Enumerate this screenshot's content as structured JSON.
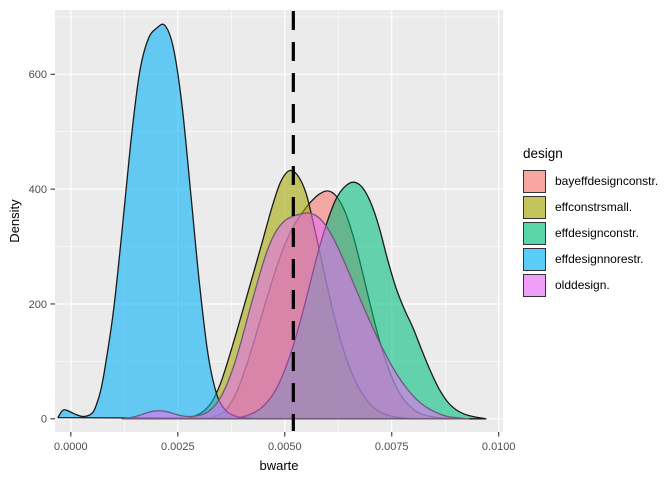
{
  "chart_data": {
    "type": "area",
    "variant": "density",
    "title": "",
    "xlabel": "bwarte",
    "ylabel": "Density",
    "xlim": [
      -0.00037,
      0.0101
    ],
    "ylim": [
      -23,
      712
    ],
    "x_ticks": {
      "values": [
        0.0,
        0.0025,
        0.005,
        0.0075,
        0.01
      ],
      "labels": [
        "0.0000",
        "0.0025",
        "0.0050",
        "0.0075",
        "0.0100"
      ]
    },
    "x_minor": [
      0.00125,
      0.00375,
      0.00625,
      0.00875
    ],
    "y_ticks": {
      "values": [
        0,
        200,
        400,
        600
      ],
      "labels": [
        "0",
        "200",
        "400",
        "600"
      ]
    },
    "y_minor": [
      100,
      300,
      500,
      700
    ],
    "grid": "on",
    "panel_bg": "#EBEBEB",
    "grid_color": "#FFFFFF",
    "tick_color": "#333333",
    "tick_label_color": "#4D4D4D",
    "fill_alpha": 0.58,
    "vline": {
      "x": 0.0052,
      "style": "dashed",
      "color": "#000000"
    },
    "legend": {
      "title": "design",
      "position": "right"
    },
    "series": [
      {
        "name": "bayeffdesignconstr.",
        "color": "#F8766D",
        "outline": "#1A1A1A",
        "points": [
          [
            0.0032,
            0
          ],
          [
            0.0034,
            5
          ],
          [
            0.0036,
            14
          ],
          [
            0.0038,
            35
          ],
          [
            0.004,
            70
          ],
          [
            0.0042,
            115
          ],
          [
            0.0044,
            165
          ],
          [
            0.0046,
            215
          ],
          [
            0.0048,
            262
          ],
          [
            0.005,
            303
          ],
          [
            0.0052,
            335
          ],
          [
            0.0054,
            358
          ],
          [
            0.0056,
            377
          ],
          [
            0.0058,
            391
          ],
          [
            0.006,
            397
          ],
          [
            0.0062,
            388
          ],
          [
            0.0064,
            362
          ],
          [
            0.0066,
            318
          ],
          [
            0.0068,
            260
          ],
          [
            0.007,
            198
          ],
          [
            0.0072,
            140
          ],
          [
            0.0074,
            92
          ],
          [
            0.0076,
            56
          ],
          [
            0.0078,
            32
          ],
          [
            0.008,
            17
          ],
          [
            0.0082,
            8
          ],
          [
            0.0085,
            3
          ],
          [
            0.0089,
            0
          ]
        ]
      },
      {
        "name": "effconstrsmall.",
        "color": "#A3A500",
        "outline": "#1A1A1A",
        "points": [
          [
            0.0027,
            0
          ],
          [
            0.0029,
            5
          ],
          [
            0.0031,
            13
          ],
          [
            0.0033,
            30
          ],
          [
            0.0035,
            62
          ],
          [
            0.0037,
            108
          ],
          [
            0.0039,
            158
          ],
          [
            0.0041,
            210
          ],
          [
            0.0043,
            262
          ],
          [
            0.0045,
            315
          ],
          [
            0.0047,
            368
          ],
          [
            0.0049,
            412
          ],
          [
            0.0051,
            432
          ],
          [
            0.0053,
            424
          ],
          [
            0.0055,
            392
          ],
          [
            0.0057,
            330
          ],
          [
            0.0059,
            262
          ],
          [
            0.0061,
            196
          ],
          [
            0.0063,
            138
          ],
          [
            0.0065,
            92
          ],
          [
            0.0067,
            58
          ],
          [
            0.0069,
            34
          ],
          [
            0.0071,
            18
          ],
          [
            0.0073,
            9
          ],
          [
            0.0076,
            3
          ],
          [
            0.008,
            0
          ]
        ]
      },
      {
        "name": "effdesignconstr.",
        "color": "#00BF7D",
        "outline": "#1A1A1A",
        "points": [
          [
            0.0038,
            0
          ],
          [
            0.004,
            3
          ],
          [
            0.0042,
            8
          ],
          [
            0.0044,
            16
          ],
          [
            0.0046,
            30
          ],
          [
            0.0048,
            52
          ],
          [
            0.005,
            85
          ],
          [
            0.0052,
            128
          ],
          [
            0.0054,
            180
          ],
          [
            0.0056,
            238
          ],
          [
            0.0058,
            296
          ],
          [
            0.006,
            345
          ],
          [
            0.0062,
            383
          ],
          [
            0.0064,
            404
          ],
          [
            0.0066,
            412
          ],
          [
            0.0068,
            404
          ],
          [
            0.007,
            378
          ],
          [
            0.0072,
            335
          ],
          [
            0.0074,
            278
          ],
          [
            0.0076,
            228
          ],
          [
            0.0078,
            190
          ],
          [
            0.008,
            158
          ],
          [
            0.0082,
            120
          ],
          [
            0.0084,
            84
          ],
          [
            0.0086,
            53
          ],
          [
            0.0088,
            30
          ],
          [
            0.009,
            16
          ],
          [
            0.0092,
            8
          ],
          [
            0.0094,
            4
          ],
          [
            0.0097,
            0
          ]
        ]
      },
      {
        "name": "effdesignnorestr.",
        "color": "#00B0F6",
        "outline": "#1A1A1A",
        "points": [
          [
            -0.0003,
            2
          ],
          [
            -0.0002,
            14
          ],
          [
            -0.0001,
            15
          ],
          [
            0.0001,
            8
          ],
          [
            0.0003,
            4
          ],
          [
            0.0005,
            10
          ],
          [
            0.0006,
            25
          ],
          [
            0.0007,
            50
          ],
          [
            0.0008,
            90
          ],
          [
            0.001,
            190
          ],
          [
            0.0012,
            330
          ],
          [
            0.0014,
            480
          ],
          [
            0.0016,
            600
          ],
          [
            0.0018,
            660
          ],
          [
            0.002,
            680
          ],
          [
            0.0022,
            685
          ],
          [
            0.0024,
            645
          ],
          [
            0.0026,
            545
          ],
          [
            0.0028,
            395
          ],
          [
            0.003,
            240
          ],
          [
            0.0032,
            115
          ],
          [
            0.0034,
            45
          ],
          [
            0.0036,
            16
          ],
          [
            0.0038,
            6
          ],
          [
            0.004,
            2
          ],
          [
            0.0044,
            0
          ]
        ]
      },
      {
        "name": "olddesign.",
        "color": "#E76BF3",
        "outline": "#6B5A78",
        "points": [
          [
            0.0012,
            0
          ],
          [
            0.0014,
            2
          ],
          [
            0.0016,
            6
          ],
          [
            0.0018,
            11
          ],
          [
            0.002,
            14
          ],
          [
            0.0022,
            13
          ],
          [
            0.0024,
            9
          ],
          [
            0.0026,
            5
          ],
          [
            0.0028,
            4
          ],
          [
            0.003,
            6
          ],
          [
            0.0032,
            12
          ],
          [
            0.0034,
            26
          ],
          [
            0.0036,
            52
          ],
          [
            0.0038,
            90
          ],
          [
            0.004,
            140
          ],
          [
            0.0042,
            195
          ],
          [
            0.0044,
            248
          ],
          [
            0.0046,
            295
          ],
          [
            0.0048,
            327
          ],
          [
            0.005,
            345
          ],
          [
            0.0052,
            353
          ],
          [
            0.0054,
            357
          ],
          [
            0.0056,
            358
          ],
          [
            0.0058,
            350
          ],
          [
            0.006,
            332
          ],
          [
            0.0062,
            305
          ],
          [
            0.0064,
            272
          ],
          [
            0.0066,
            237
          ],
          [
            0.0068,
            202
          ],
          [
            0.007,
            168
          ],
          [
            0.0072,
            136
          ],
          [
            0.0074,
            106
          ],
          [
            0.0076,
            80
          ],
          [
            0.0078,
            58
          ],
          [
            0.008,
            40
          ],
          [
            0.0082,
            26
          ],
          [
            0.0084,
            16
          ],
          [
            0.0086,
            9
          ],
          [
            0.0088,
            4
          ],
          [
            0.009,
            2
          ],
          [
            0.0093,
            0
          ]
        ]
      }
    ]
  }
}
